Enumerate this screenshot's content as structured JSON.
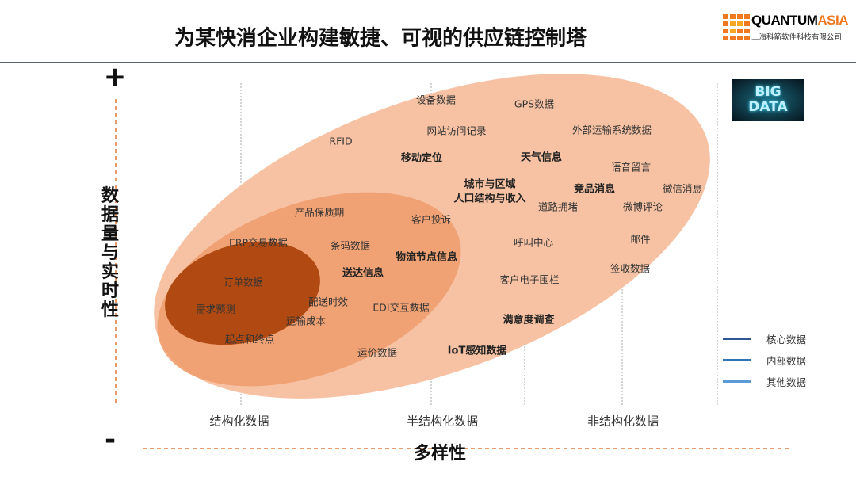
{
  "title": "为某快消企业构建敏捷、可视的供应链控制塔",
  "logo": {
    "brand_black": "QUANTUM",
    "brand_orange": "ASIA",
    "subtitle": "上海科箭软件科技有限公司"
  },
  "badge": {
    "line1": "BIG",
    "line2": "DATA"
  },
  "axes": {
    "y_label": "数据量与实时性",
    "x_label": "多样性",
    "plus": "+",
    "minus": "-",
    "x_categories": [
      "结构化数据",
      "半结构化数据",
      "非结构化数据"
    ]
  },
  "legend": [
    {
      "label": "核心数据",
      "color": "#2f5597"
    },
    {
      "label": "内部数据",
      "color": "#2e75b6"
    },
    {
      "label": "其他数据",
      "color": "#5b9bd5"
    }
  ],
  "colors": {
    "outer": "#f6c2a3",
    "middle": "#ef9f6f",
    "inner": "#b04a12",
    "dashed": "#e07a3a"
  },
  "items": [
    "设备数据",
    "GPS数据",
    "网站访问记录",
    "外部运输系统数据",
    "RFID",
    "移动定位",
    "天气信息",
    "语音留言",
    "城市与区域",
    "人口结构与收入",
    "竞品消息",
    "微信消息",
    "道路拥堵",
    "微博评论",
    "产品保质期",
    "客户投诉",
    "ERP交易数据",
    "条码数据",
    "呼叫中心",
    "邮件",
    "物流节点信息",
    "送达信息",
    "签收数据",
    "订单数据",
    "客户电子围栏",
    "配送时效",
    "需求预测",
    "EDI交互数据",
    "运输成本",
    "满意度调查",
    "起点和终点",
    "运价数据",
    "IoT感知数据"
  ]
}
